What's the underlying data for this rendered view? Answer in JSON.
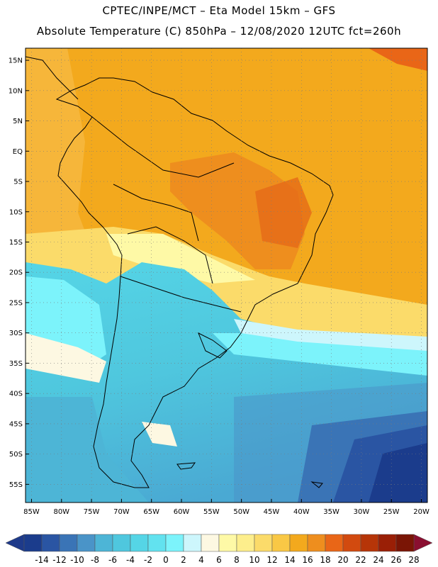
{
  "header": {
    "line1": "CPTEC/INPE/MCT –  Eta Model 15km – GFS",
    "line2": "Absolute Temperature (C) 850hPa – 12/08/2020 12UTC fct=260h"
  },
  "map": {
    "lat_labels": [
      "15N",
      "10N",
      "5N",
      "EQ",
      "5S",
      "10S",
      "15S",
      "20S",
      "25S",
      "30S",
      "35S",
      "40S",
      "45S",
      "50S",
      "55S"
    ],
    "lon_labels": [
      "85W",
      "80W",
      "75W",
      "70W",
      "65W",
      "60W",
      "55W",
      "50W",
      "45W",
      "40W",
      "35W",
      "30W",
      "25W",
      "20W"
    ],
    "lat_values": [
      15,
      10,
      5,
      0,
      -5,
      -10,
      -15,
      -20,
      -25,
      -30,
      -35,
      -40,
      -45,
      -50,
      -55
    ],
    "lon_values": [
      -85,
      -80,
      -75,
      -70,
      -65,
      -60,
      -55,
      -50,
      -45,
      -40,
      -35,
      -30,
      -25,
      -20
    ],
    "extent": {
      "lon_min": -86,
      "lon_max": -19,
      "lat_min": -58,
      "lat_max": 17
    }
  },
  "legend": {
    "labels": [
      "-14",
      "-12",
      "-10",
      "-8",
      "-6",
      "-4",
      "-2",
      "0",
      "2",
      "4",
      "6",
      "8",
      "10",
      "12",
      "14",
      "16",
      "18",
      "20",
      "22",
      "24",
      "26",
      "28"
    ],
    "colors": [
      "#1b3c8c",
      "#2a55a3",
      "#3a74b6",
      "#4a94c8",
      "#4db5d6",
      "#4fc7de",
      "#55d5e6",
      "#62e2ef",
      "#7cf3fb",
      "#cdf6fc",
      "#fdf8e2",
      "#fef9a6",
      "#fdee8c",
      "#fbdb6a",
      "#f9c845",
      "#f3a91d",
      "#ee8e1e",
      "#e96617",
      "#d24a0f",
      "#b63508",
      "#9a1f06",
      "#7a1505"
    ],
    "low_color": "#1e3a8a",
    "high_color": "#8a0f30"
  }
}
